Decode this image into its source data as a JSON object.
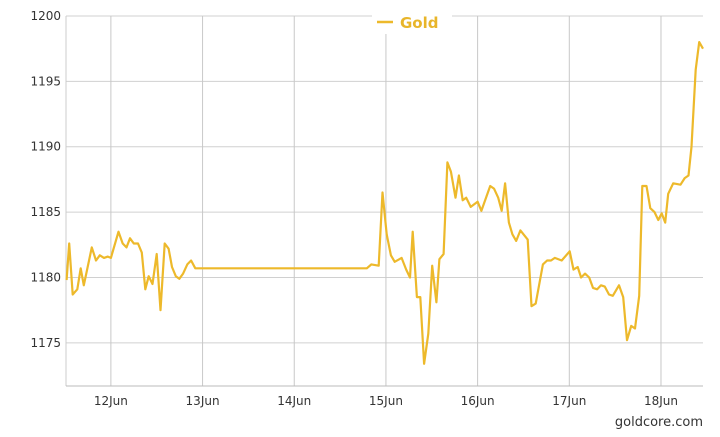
{
  "chart_data": {
    "type": "line",
    "title": "",
    "xlabel": "",
    "ylabel": "",
    "ylim": [
      1171.7,
      1200
    ],
    "xlim": [
      "06-11 12:15",
      "06-18 11:00"
    ],
    "y_ticks": [
      "1175",
      "1180",
      "1185",
      "1190",
      "1195",
      "1200"
    ],
    "x_ticks": [
      {
        "label": "12Jun",
        "at": "06-12 00:00"
      },
      {
        "label": "13Jun",
        "at": "06-13 00:00"
      },
      {
        "label": "14Jun",
        "at": "06-14 00:00"
      },
      {
        "label": "15Jun",
        "at": "06-15 00:00"
      },
      {
        "label": "16Jun",
        "at": "06-16 00:00"
      },
      {
        "label": "17Jun",
        "at": "06-17 00:00"
      },
      {
        "label": "18Jun",
        "at": "06-18 00:00"
      }
    ],
    "grid": true,
    "legend_position": "top-center",
    "series": [
      {
        "name": "Gold",
        "color": "#edb92b",
        "points": [
          [
            "06-11 12:24",
            1179.8
          ],
          [
            "06-11 13:06",
            1182.6
          ],
          [
            "06-11 14:00",
            1178.7
          ],
          [
            "06-11 15:12",
            1179.1
          ],
          [
            "06-11 16:06",
            1180.7
          ],
          [
            "06-11 16:54",
            1179.4
          ],
          [
            "06-11 19:00",
            1182.3
          ],
          [
            "06-11 20:06",
            1181.3
          ],
          [
            "06-11 21:06",
            1181.7
          ],
          [
            "06-11 22:12",
            1181.5
          ],
          [
            "06-11 23:12",
            1181.6
          ],
          [
            "06-12 00:00",
            1181.5
          ],
          [
            "06-12 02:00",
            1183.5
          ],
          [
            "06-12 03:06",
            1182.6
          ],
          [
            "06-12 04:06",
            1182.3
          ],
          [
            "06-12 05:00",
            1183.0
          ],
          [
            "06-12 06:00",
            1182.6
          ],
          [
            "06-12 07:06",
            1182.6
          ],
          [
            "06-12 08:06",
            1181.9
          ],
          [
            "06-12 09:00",
            1179.1
          ],
          [
            "06-12 09:54",
            1180.1
          ],
          [
            "06-12 10:54",
            1179.5
          ],
          [
            "06-12 12:00",
            1181.8
          ],
          [
            "06-12 13:00",
            1177.5
          ],
          [
            "06-12 14:06",
            1182.6
          ],
          [
            "06-12 15:06",
            1182.2
          ],
          [
            "06-12 16:00",
            1180.8
          ],
          [
            "06-12 17:00",
            1180.1
          ],
          [
            "06-12 17:54",
            1179.9
          ],
          [
            "06-12 18:54",
            1180.3
          ],
          [
            "06-12 20:00",
            1181.0
          ],
          [
            "06-12 21:00",
            1181.3
          ],
          [
            "06-12 22:06",
            1180.7
          ],
          [
            "06-14 19:00",
            1180.7
          ],
          [
            "06-14 20:12",
            1181.0
          ],
          [
            "06-14 22:06",
            1180.9
          ],
          [
            "06-14 23:06",
            1186.5
          ],
          [
            "06-15 00:12",
            1183.3
          ],
          [
            "06-15 01:18",
            1181.7
          ],
          [
            "06-15 02:18",
            1181.2
          ],
          [
            "06-15 04:06",
            1181.5
          ],
          [
            "06-15 05:18",
            1180.6
          ],
          [
            "06-15 06:18",
            1180.0
          ],
          [
            "06-15 07:00",
            1183.5
          ],
          [
            "06-15 08:06",
            1178.5
          ],
          [
            "06-15 09:00",
            1178.5
          ],
          [
            "06-15 10:00",
            1173.4
          ],
          [
            "06-15 11:06",
            1175.7
          ],
          [
            "06-15 12:06",
            1180.9
          ],
          [
            "06-15 13:12",
            1178.1
          ],
          [
            "06-15 14:00",
            1181.4
          ],
          [
            "06-15 15:06",
            1181.8
          ],
          [
            "06-15 16:06",
            1188.8
          ],
          [
            "06-15 17:00",
            1188.1
          ],
          [
            "06-15 18:12",
            1186.1
          ],
          [
            "06-15 19:06",
            1187.8
          ],
          [
            "06-15 20:06",
            1185.9
          ],
          [
            "06-15 21:00",
            1186.1
          ],
          [
            "06-15 22:12",
            1185.4
          ],
          [
            "06-16 00:00",
            1185.8
          ],
          [
            "06-16 01:00",
            1185.1
          ],
          [
            "06-16 03:18",
            1187.0
          ],
          [
            "06-16 04:18",
            1186.8
          ],
          [
            "06-16 05:24",
            1186.1
          ],
          [
            "06-16 06:18",
            1185.1
          ],
          [
            "06-16 07:12",
            1187.2
          ],
          [
            "06-16 08:12",
            1184.2
          ],
          [
            "06-16 09:06",
            1183.3
          ],
          [
            "06-16 10:06",
            1182.8
          ],
          [
            "06-16 11:12",
            1183.6
          ],
          [
            "06-16 13:06",
            1182.9
          ],
          [
            "06-16 14:06",
            1177.8
          ],
          [
            "06-16 15:12",
            1178.0
          ],
          [
            "06-16 17:06",
            1181.0
          ],
          [
            "06-16 18:12",
            1181.3
          ],
          [
            "06-16 19:12",
            1181.3
          ],
          [
            "06-16 20:12",
            1181.5
          ],
          [
            "06-16 22:00",
            1181.3
          ],
          [
            "06-17 00:06",
            1182.0
          ],
          [
            "06-17 01:06",
            1180.6
          ],
          [
            "06-17 02:12",
            1180.8
          ],
          [
            "06-17 03:06",
            1180.0
          ],
          [
            "06-17 04:06",
            1180.3
          ],
          [
            "06-17 05:12",
            1180.0
          ],
          [
            "06-17 06:12",
            1179.2
          ],
          [
            "06-17 07:18",
            1179.1
          ],
          [
            "06-17 08:18",
            1179.4
          ],
          [
            "06-17 09:18",
            1179.3
          ],
          [
            "06-17 10:24",
            1178.7
          ],
          [
            "06-17 11:24",
            1178.6
          ],
          [
            "06-17 13:00",
            1179.4
          ],
          [
            "06-17 14:06",
            1178.5
          ],
          [
            "06-17 15:06",
            1175.2
          ],
          [
            "06-17 16:12",
            1176.3
          ],
          [
            "06-17 17:12",
            1176.1
          ],
          [
            "06-17 18:18",
            1178.6
          ],
          [
            "06-17 19:06",
            1187.0
          ],
          [
            "06-17 20:12",
            1187.0
          ],
          [
            "06-17 21:12",
            1185.3
          ],
          [
            "06-17 22:18",
            1185.0
          ],
          [
            "06-17 23:18",
            1184.4
          ],
          [
            "06-18 00:12",
            1184.9
          ],
          [
            "06-18 01:06",
            1184.2
          ],
          [
            "06-18 01:54",
            1186.4
          ],
          [
            "06-18 03:12",
            1187.2
          ],
          [
            "06-18 05:06",
            1187.1
          ],
          [
            "06-18 06:12",
            1187.6
          ],
          [
            "06-18 07:12",
            1187.8
          ],
          [
            "06-18 08:00",
            1190.0
          ],
          [
            "06-18 09:06",
            1195.9
          ],
          [
            "06-18 10:00",
            1198.0
          ],
          [
            "06-18 11:00",
            1197.5
          ]
        ]
      }
    ]
  },
  "credit": "goldcore.com"
}
